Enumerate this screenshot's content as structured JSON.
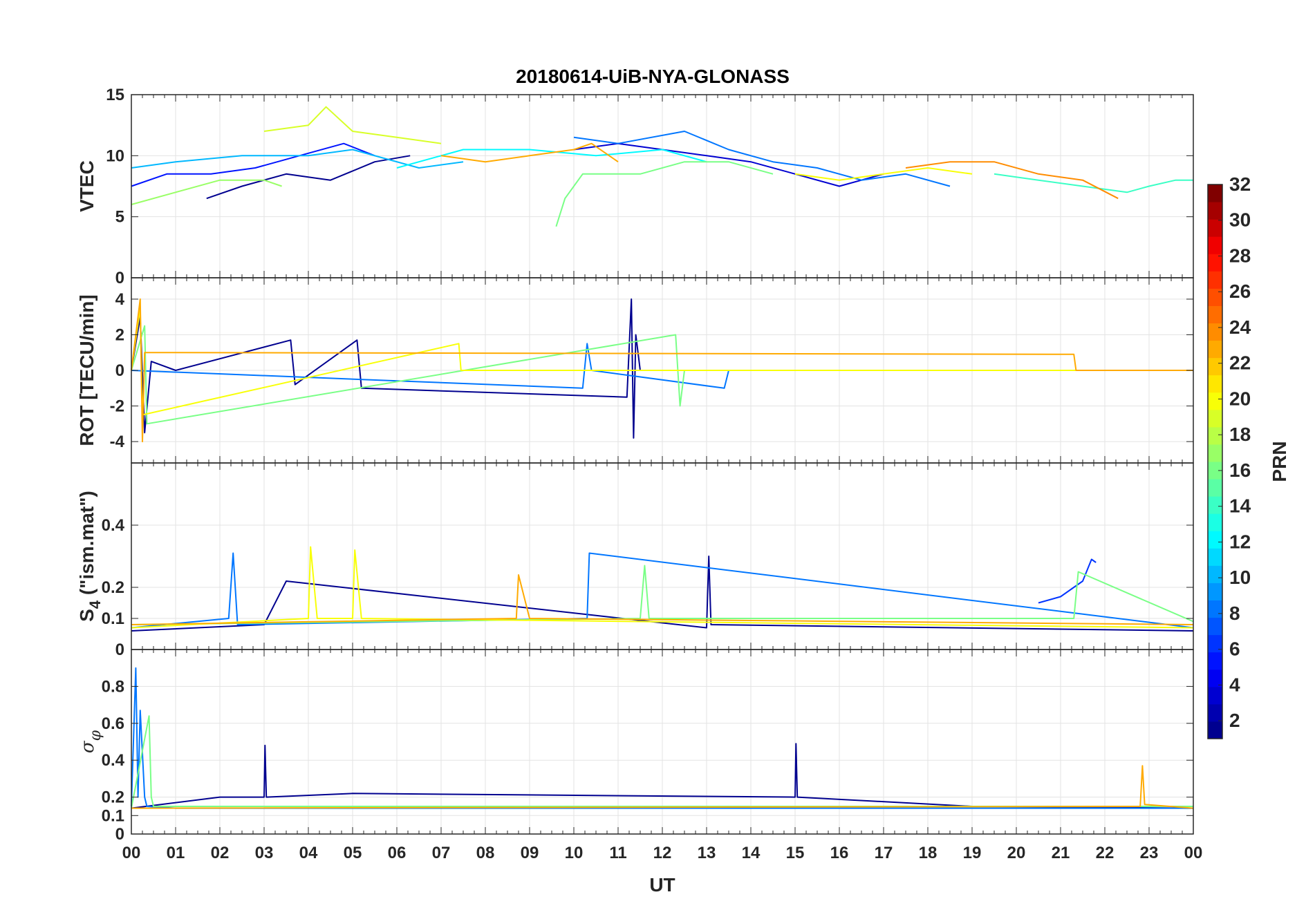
{
  "chart_data": {
    "type": "line",
    "title": "20180614-UiB-NYA-GLONASS",
    "xlabel": "UT",
    "x_tick_labels": [
      "00",
      "01",
      "02",
      "03",
      "04",
      "05",
      "06",
      "07",
      "08",
      "09",
      "10",
      "11",
      "12",
      "13",
      "14",
      "15",
      "16",
      "17",
      "18",
      "19",
      "20",
      "21",
      "22",
      "23",
      "00"
    ],
    "xlim": [
      0,
      24
    ],
    "grid": true,
    "panels": [
      {
        "id": "vtec",
        "ylabel": "VTEC",
        "ylim": [
          0,
          15
        ],
        "yticks": [
          0,
          5,
          10,
          15
        ],
        "ytick_labels": [
          "0",
          "5",
          "10",
          "15"
        ],
        "series": [
          {
            "name": "PRN 1",
            "x": [
              1.7,
              2.5,
              3.5,
              4.5,
              5.5,
              6.3
            ],
            "values": [
              6.5,
              7.5,
              8.5,
              8.0,
              9.5,
              10.0
            ]
          },
          {
            "name": "PRN 3",
            "x": [
              10.0,
              11.0,
              12.0,
              13.0,
              14.0,
              15.0,
              16.0,
              17.0
            ],
            "values": [
              10.5,
              11.0,
              10.5,
              10.0,
              9.5,
              8.5,
              7.5,
              8.5
            ]
          },
          {
            "name": "PRN 5",
            "x": [
              0.0,
              0.8,
              1.8,
              2.8,
              3.8,
              4.8,
              5.5
            ],
            "values": [
              7.5,
              8.5,
              8.5,
              9.0,
              10.0,
              11.0,
              10.0
            ]
          },
          {
            "name": "PRN 8",
            "x": [
              10.0,
              11.0,
              12.5,
              13.5,
              14.5,
              15.5,
              16.5,
              17.5,
              18.5
            ],
            "values": [
              11.5,
              11.0,
              12.0,
              10.5,
              9.5,
              9.0,
              8.0,
              8.5,
              7.5
            ]
          },
          {
            "name": "PRN 10",
            "x": [
              0.0,
              1.0,
              2.5,
              4.0,
              5.0,
              6.5,
              7.5
            ],
            "values": [
              9.0,
              9.5,
              10.0,
              10.0,
              10.5,
              9.0,
              9.5
            ]
          },
          {
            "name": "PRN 12",
            "x": [
              6.0,
              7.5,
              9.0,
              10.5,
              12.0,
              13.0
            ],
            "values": [
              9.0,
              10.5,
              10.5,
              10.0,
              10.5,
              9.5
            ]
          },
          {
            "name": "PRN 14",
            "x": [
              19.5,
              20.5,
              21.5,
              22.5,
              23.0,
              23.6,
              24.0
            ],
            "values": [
              8.5,
              8.0,
              7.5,
              7.0,
              7.5,
              8.0,
              8.0
            ]
          },
          {
            "name": "PRN 16",
            "x": [
              9.6,
              9.8,
              10.2,
              11.5,
              12.5,
              13.5,
              14.5
            ],
            "values": [
              4.2,
              6.5,
              8.5,
              8.5,
              9.5,
              9.5,
              8.5
            ]
          },
          {
            "name": "PRN 17",
            "x": [
              0.0,
              1.0,
              2.0,
              3.0,
              3.4
            ],
            "values": [
              6.0,
              7.0,
              8.0,
              8.0,
              7.5
            ]
          },
          {
            "name": "PRN 19",
            "x": [
              3.0,
              4.0,
              4.4,
              5.0,
              6.0,
              7.0
            ],
            "values": [
              12.0,
              12.5,
              14.0,
              12.0,
              11.5,
              11.0
            ]
          },
          {
            "name": "PRN 20",
            "x": [
              15.0,
              16.0,
              17.0,
              18.0,
              19.0
            ],
            "values": [
              8.5,
              8.0,
              8.5,
              9.0,
              8.5
            ]
          },
          {
            "name": "PRN 23",
            "x": [
              7.0,
              8.0,
              9.0,
              10.0,
              10.4,
              11.0
            ],
            "values": [
              10.0,
              9.5,
              10.0,
              10.5,
              11.0,
              9.5
            ]
          },
          {
            "name": "PRN 24",
            "x": [
              17.5,
              18.5,
              19.5,
              20.5,
              21.5,
              22.3
            ],
            "values": [
              9.0,
              9.5,
              9.5,
              8.5,
              8.0,
              6.5
            ]
          }
        ]
      },
      {
        "id": "rot",
        "ylabel": "ROT [TECU/min]",
        "ylim": [
          -5.2,
          5.2
        ],
        "yticks": [
          -4,
          -2,
          0,
          2,
          4
        ],
        "ytick_labels": [
          "-4",
          "-2",
          "0",
          "2",
          "4"
        ],
        "series": [
          {
            "name": "PRN 1",
            "x": [
              0.0,
              0.2,
              0.3,
              0.45,
              1.0,
              3.6,
              3.7,
              5.1,
              5.2,
              11.2,
              11.3,
              11.35,
              11.4,
              11.5,
              12.0,
              24.0
            ],
            "values": [
              0.0,
              3.0,
              -3.5,
              0.5,
              0.0,
              1.7,
              -0.8,
              1.7,
              -1.0,
              -1.5,
              4.0,
              -3.8,
              2.0,
              0.0,
              0.0,
              0.0
            ]
          },
          {
            "name": "PRN 8",
            "x": [
              0.0,
              10.2,
              10.3,
              10.4,
              13.4,
              13.5,
              24.0
            ],
            "values": [
              0.0,
              -1.0,
              1.5,
              0.0,
              -1.0,
              0.0,
              0.0
            ]
          },
          {
            "name": "PRN 16",
            "x": [
              0.0,
              0.3,
              0.35,
              12.3,
              12.4,
              12.5,
              24.0
            ],
            "values": [
              0.0,
              2.5,
              -3.0,
              2.0,
              -2.0,
              0.0,
              0.0
            ]
          },
          {
            "name": "PRN 20",
            "x": [
              0.0,
              0.2,
              0.25,
              7.4,
              7.45,
              24.0
            ],
            "values": [
              0.0,
              3.5,
              -2.5,
              1.5,
              0.0,
              0.0
            ]
          },
          {
            "name": "PRN 23",
            "x": [
              0.0,
              0.2,
              0.25,
              0.3,
              21.3,
              21.35,
              24.0
            ],
            "values": [
              0.0,
              4.0,
              -4.0,
              1.0,
              0.9,
              0.0,
              0.0
            ]
          }
        ]
      },
      {
        "id": "s4",
        "ylabel": "S4 (\"ism.mat\")",
        "ylabel_main": "S",
        "ylabel_sub": "4",
        "ylabel_rest": " (\"ism.mat\")",
        "ylim": [
          0,
          0.6
        ],
        "yticks": [
          0,
          0.1,
          0.2,
          0.4
        ],
        "ytick_labels": [
          "0",
          "0.1",
          "0.2",
          "0.4"
        ],
        "series": [
          {
            "name": "PRN 1",
            "x": [
              0.0,
              3.0,
              3.5,
              13.0,
              13.05,
              13.1,
              24.0
            ],
            "values": [
              0.06,
              0.08,
              0.22,
              0.07,
              0.3,
              0.08,
              0.06
            ]
          },
          {
            "name": "PRN 6",
            "x": [
              20.5,
              21.0,
              21.5,
              21.7,
              21.8
            ],
            "values": [
              0.15,
              0.17,
              0.22,
              0.29,
              0.28
            ]
          },
          {
            "name": "PRN 8",
            "x": [
              0.0,
              2.2,
              2.3,
              2.4,
              10.3,
              10.35,
              24.0
            ],
            "values": [
              0.07,
              0.1,
              0.31,
              0.08,
              0.1,
              0.31,
              0.07
            ]
          },
          {
            "name": "PRN 16",
            "x": [
              0.0,
              11.5,
              11.6,
              11.7,
              21.3,
              21.4,
              24.0
            ],
            "values": [
              0.08,
              0.1,
              0.27,
              0.1,
              0.1,
              0.25,
              0.09
            ]
          },
          {
            "name": "PRN 20",
            "x": [
              0.0,
              4.0,
              4.05,
              4.2,
              5.0,
              5.05,
              5.2,
              24.0
            ],
            "values": [
              0.07,
              0.1,
              0.33,
              0.1,
              0.1,
              0.32,
              0.1,
              0.07
            ]
          },
          {
            "name": "PRN 23",
            "x": [
              0.0,
              8.7,
              8.75,
              9.0,
              24.0
            ],
            "values": [
              0.08,
              0.1,
              0.24,
              0.1,
              0.08
            ]
          }
        ]
      },
      {
        "id": "sigma_phi",
        "ylabel": "σφ",
        "ylabel_main": "σ",
        "ylabel_sub": "φ",
        "ylim": [
          0,
          1.0
        ],
        "yticks": [
          0,
          0.1,
          0.2,
          0.4,
          0.6,
          0.8
        ],
        "ytick_labels": [
          "0",
          "0.1",
          "0.2",
          "0.4",
          "0.6",
          "0.8"
        ],
        "series": [
          {
            "name": "PRN 1",
            "x": [
              0.0,
              2.0,
              3.0,
              3.02,
              3.05,
              5.0,
              15.0,
              15.02,
              15.05,
              19.0,
              24.0
            ],
            "values": [
              0.14,
              0.2,
              0.2,
              0.48,
              0.2,
              0.22,
              0.2,
              0.49,
              0.2,
              0.15,
              0.14
            ]
          },
          {
            "name": "PRN 8",
            "x": [
              0.0,
              0.1,
              0.15,
              0.2,
              0.3,
              0.35,
              1.0,
              24.0
            ],
            "values": [
              0.15,
              0.9,
              0.2,
              0.67,
              0.2,
              0.15,
              0.14,
              0.14
            ]
          },
          {
            "name": "PRN 16",
            "x": [
              0.0,
              0.4,
              0.45,
              0.5,
              24.0
            ],
            "values": [
              0.14,
              0.64,
              0.2,
              0.15,
              0.15
            ]
          },
          {
            "name": "PRN 23",
            "x": [
              0.0,
              22.8,
              22.85,
              22.9,
              24.0
            ],
            "values": [
              0.14,
              0.15,
              0.37,
              0.16,
              0.14
            ]
          }
        ]
      }
    ],
    "colorbar": {
      "label": "PRN",
      "range": [
        1,
        32
      ],
      "ticks": [
        2,
        4,
        6,
        8,
        10,
        12,
        14,
        16,
        18,
        20,
        22,
        24,
        26,
        28,
        30,
        32
      ],
      "tick_labels": [
        "2",
        "4",
        "6",
        "8",
        "10",
        "12",
        "14",
        "16",
        "18",
        "20",
        "22",
        "24",
        "26",
        "28",
        "30",
        "32"
      ],
      "colormap": "jet",
      "colormap_stops": [
        "#00008f",
        "#0000ff",
        "#00ffff",
        "#ffff00",
        "#ff0000",
        "#800000"
      ]
    }
  }
}
